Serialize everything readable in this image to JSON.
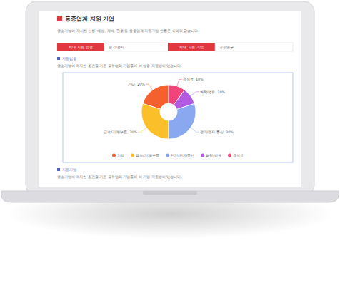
{
  "header": {
    "title": "동종업계 지원 기업",
    "description": "중소기업이 지시한 신청, 예방, 제배, 판로 등 동종업계 지원기업 현황은 아래와 같습니다."
  },
  "tabs": [
    {
      "label": "최대 지원 업종",
      "value": "전기/전자"
    },
    {
      "label": "최대 지원 기업",
      "value": "공공연구"
    }
  ],
  "sections": [
    {
      "title": "지원업종",
      "description": "중소기업이 속지한 조건을 기준 공유업의 기업들이 이 업종 지원받아 있습니다."
    },
    {
      "title": "지원기업",
      "description": "중소기업이 속지한 조건을 기준 공유업의 기업들이 이 기업 지원받아 있습니다."
    }
  ],
  "chart_data": {
    "type": "pie",
    "categories": [
      "기타",
      "금속/기계/부품",
      "전기/전자/통신",
      "화학/섬유",
      "음식료"
    ],
    "values": [
      20,
      30,
      30,
      10,
      10
    ],
    "value_labels": [
      "기타, 20%",
      "금속/기계/부품, 30%",
      "전기/전자/통신, 30%",
      "화학/섬유, 10%",
      "음식료, 10%"
    ],
    "colors": [
      "#f4602e",
      "#fbbf2a",
      "#8aa8f0",
      "#b25ae0",
      "#f0447a"
    ],
    "data_labels": true,
    "legend": "bottom"
  }
}
